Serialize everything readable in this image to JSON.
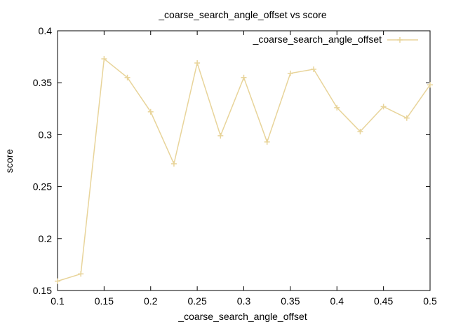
{
  "chart_data": {
    "type": "line",
    "title": "_coarse_search_angle_offset vs score",
    "xlabel": "_coarse_search_angle_offset",
    "ylabel": "score",
    "xlim": [
      0.1,
      0.5
    ],
    "ylim": [
      0.15,
      0.4
    ],
    "xticks": [
      "0.1",
      "0.15",
      "0.2",
      "0.25",
      "0.3",
      "0.35",
      "0.4",
      "0.45",
      "0.5"
    ],
    "yticks": [
      "0.15",
      "0.2",
      "0.25",
      "0.3",
      "0.35",
      "0.4"
    ],
    "grid": false,
    "legend_position": "top-right",
    "series": [
      {
        "name": "_coarse_search_angle_offset",
        "color": "#e8d49a",
        "marker": "plus",
        "x": [
          0.1,
          0.125,
          0.15,
          0.175,
          0.2,
          0.225,
          0.25,
          0.275,
          0.3,
          0.325,
          0.35,
          0.375,
          0.4,
          0.425,
          0.45,
          0.475,
          0.5
        ],
        "y": [
          0.159,
          0.166,
          0.373,
          0.355,
          0.322,
          0.272,
          0.369,
          0.299,
          0.355,
          0.293,
          0.359,
          0.363,
          0.326,
          0.303,
          0.327,
          0.316,
          0.348
        ]
      }
    ]
  }
}
